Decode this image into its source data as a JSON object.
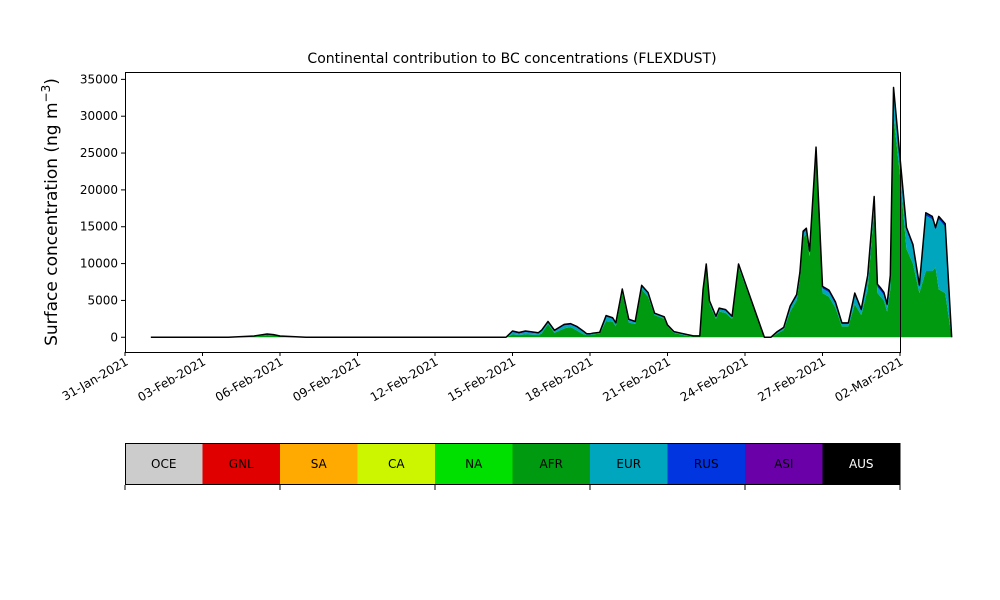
{
  "chart_data": {
    "type": "area",
    "stacked": true,
    "title": "Continental contribution to BC concentrations (FLEXDUST)",
    "ylabel": "Surface concentration (ng m",
    "ylabel_superscript": "−3",
    "ylabel_suffix": ")",
    "xlabel": "",
    "xlim": [
      "2021-01-31",
      "2021-03-02"
    ],
    "ylim": [
      -2000,
      36000
    ],
    "grid": false,
    "x_ticks": [
      "31-Jan-2021",
      "03-Feb-2021",
      "06-Feb-2021",
      "09-Feb-2021",
      "12-Feb-2021",
      "15-Feb-2021",
      "18-Feb-2021",
      "21-Feb-2021",
      "24-Feb-2021",
      "27-Feb-2021",
      "02-Mar-2021"
    ],
    "y_ticks": [
      "0",
      "5000",
      "10000",
      "15000",
      "20000",
      "25000",
      "30000",
      "35000"
    ],
    "x": [
      "2021-02-01",
      "2021-02-04",
      "2021-02-05",
      "2021-02-05 12:00",
      "2021-02-05 18:00",
      "2021-02-06",
      "2021-02-07",
      "2021-02-14 18:00",
      "2021-02-15",
      "2021-02-15 06:00",
      "2021-02-15 12:00",
      "2021-02-16",
      "2021-02-16 03:00",
      "2021-02-16 09:00",
      "2021-02-16 15:00",
      "2021-02-17",
      "2021-02-17 06:00",
      "2021-02-17 12:00",
      "2021-02-17 18:00",
      "2021-02-17 21:00",
      "2021-02-18",
      "2021-02-18 03:00",
      "2021-02-18 09:00",
      "2021-02-18 15:00",
      "2021-02-18 21:00",
      "2021-02-19",
      "2021-02-19 06:00",
      "2021-02-19 12:00",
      "2021-02-19 18:00",
      "2021-02-20",
      "2021-02-20 06:00",
      "2021-02-20 12:00",
      "2021-02-20 21:00",
      "2021-02-21",
      "2021-02-21 06:00",
      "2021-02-21 12:00",
      "2021-02-21 18:00",
      "2021-02-22",
      "2021-02-22 06:00",
      "2021-02-22 09:00",
      "2021-02-22 12:00",
      "2021-02-22 15:00",
      "2021-02-22 21:00",
      "2021-02-23",
      "2021-02-23 06:00",
      "2021-02-23 12:00",
      "2021-02-23 18:00",
      "2021-02-24 18:00",
      "2021-02-25",
      "2021-02-25 06:00",
      "2021-02-25 12:00",
      "2021-02-25 18:00",
      "2021-02-26",
      "2021-02-26 03:00",
      "2021-02-26 06:00",
      "2021-02-26 09:00",
      "2021-02-26 12:00",
      "2021-02-26 18:00",
      "2021-02-27",
      "2021-02-27 06:00",
      "2021-02-27 12:00",
      "2021-02-27 18:00",
      "2021-02-28",
      "2021-02-28 06:00",
      "2021-02-28 12:00",
      "2021-02-28 18:00",
      "2021-03-01",
      "2021-03-01 03:00",
      "2021-03-01 06:00",
      "2021-03-01 09:00",
      "2021-03-01 12:00",
      "2021-03-01 15:00",
      "2021-03-01 18:00",
      "2021-03-02",
      "2021-03-02 06:00",
      "2021-03-02 12:00",
      "2021-03-02 18:00",
      "2021-03-03",
      "2021-03-03 06:00",
      "2021-03-03 09:00",
      "2021-03-03 12:00",
      "2021-03-03 18:00",
      "2021-03-04"
    ],
    "series": [
      {
        "name": "AFR",
        "color": "#009a10",
        "values": [
          0,
          0,
          100,
          300,
          250,
          100,
          0,
          0,
          400,
          300,
          400,
          300,
          500,
          1800,
          600,
          1200,
          1400,
          900,
          400,
          300,
          300,
          400,
          500,
          2200,
          2100,
          1500,
          6000,
          2000,
          1800,
          6500,
          5500,
          3000,
          2500,
          1500,
          600,
          400,
          200,
          100,
          100,
          6000,
          9500,
          4500,
          2500,
          3500,
          3300,
          2500,
          9500,
          0,
          0,
          500,
          1000,
          3500,
          5000,
          8000,
          13500,
          14000,
          11000,
          25000,
          6000,
          5500,
          4000,
          1500,
          1500,
          4500,
          3000,
          6500,
          17500,
          6000,
          5500,
          5000,
          3500,
          6500,
          30000,
          22000,
          12000,
          10000,
          6000,
          9000,
          9000,
          9500,
          6500,
          6000,
          0
        ]
      },
      {
        "name": "EUR",
        "color": "#00a6be",
        "values": [
          0,
          0,
          50,
          100,
          80,
          50,
          0,
          0,
          300,
          200,
          300,
          200,
          300,
          200,
          200,
          400,
          300,
          400,
          300,
          100,
          100,
          100,
          100,
          600,
          400,
          300,
          400,
          300,
          200,
          400,
          400,
          200,
          200,
          100,
          100,
          100,
          100,
          50,
          50,
          300,
          300,
          300,
          200,
          300,
          300,
          200,
          300,
          0,
          0,
          200,
          200,
          600,
          500,
          500,
          600,
          500,
          400,
          500,
          600,
          600,
          500,
          300,
          300,
          1200,
          500,
          1500,
          1200,
          800,
          800,
          700,
          600,
          1500,
          3500,
          2000,
          2500,
          2200,
          700,
          7500,
          7000,
          5000,
          9500,
          9000,
          0
        ]
      },
      {
        "name": "RUS",
        "color": "#0035e0",
        "values": [
          0,
          0,
          20,
          30,
          20,
          10,
          0,
          0,
          100,
          100,
          100,
          80,
          100,
          100,
          100,
          100,
          100,
          100,
          80,
          50,
          50,
          50,
          50,
          100,
          100,
          100,
          100,
          100,
          100,
          100,
          100,
          50,
          50,
          50,
          50,
          50,
          50,
          30,
          30,
          100,
          100,
          100,
          100,
          100,
          100,
          100,
          100,
          0,
          0,
          50,
          100,
          100,
          200,
          200,
          200,
          200,
          200,
          200,
          200,
          200,
          200,
          100,
          100,
          200,
          200,
          300,
          300,
          300,
          300,
          300,
          300,
          300,
          300,
          300,
          300,
          300,
          300,
          300,
          300,
          300,
          300,
          300,
          0
        ]
      },
      {
        "name": "ASI",
        "color": "#6a00a8",
        "values": [
          0,
          0,
          10,
          20,
          10,
          10,
          0,
          0,
          50,
          50,
          50,
          40,
          50,
          50,
          50,
          50,
          50,
          50,
          40,
          20,
          20,
          20,
          20,
          50,
          50,
          50,
          50,
          50,
          50,
          50,
          50,
          20,
          20,
          20,
          20,
          20,
          20,
          10,
          10,
          50,
          50,
          50,
          50,
          50,
          50,
          50,
          50,
          0,
          0,
          20,
          50,
          50,
          100,
          100,
          100,
          100,
          100,
          100,
          100,
          100,
          100,
          50,
          50,
          100,
          100,
          100,
          100,
          100,
          100,
          100,
          100,
          100,
          100,
          100,
          100,
          100,
          100,
          100,
          100,
          100,
          100,
          100,
          0
        ]
      }
    ],
    "total_line": {
      "name": "AUS",
      "color": "#000000"
    },
    "legend": [
      {
        "label": "OCE",
        "color": "#cccccc"
      },
      {
        "label": "GNL",
        "color": "#e00000"
      },
      {
        "label": "SA",
        "color": "#ffaa00"
      },
      {
        "label": "CA",
        "color": "#ccf500"
      },
      {
        "label": "NA",
        "color": "#00e000"
      },
      {
        "label": "AFR",
        "color": "#009a10"
      },
      {
        "label": "EUR",
        "color": "#00a6be"
      },
      {
        "label": "RUS",
        "color": "#0035e0"
      },
      {
        "label": "ASI",
        "color": "#6a00a8"
      },
      {
        "label": "AUS",
        "color": "#000000"
      }
    ]
  }
}
